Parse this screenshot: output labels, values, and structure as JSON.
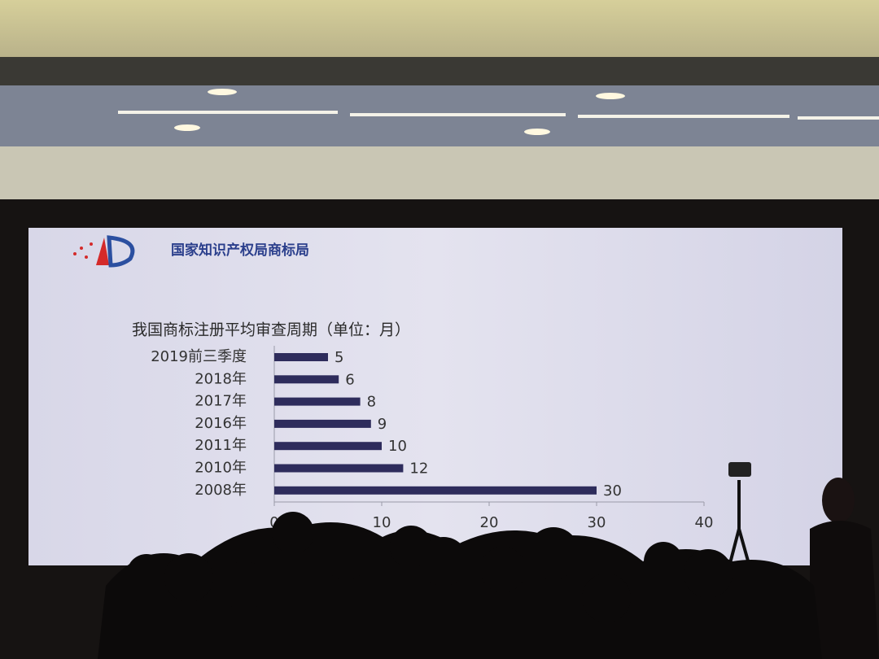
{
  "header": {
    "title": "国家知识产权局商标局"
  },
  "chart_data": {
    "type": "bar",
    "orientation": "horizontal",
    "title": "我国商标注册平均审查周期（单位：月）",
    "categories": [
      "2019前三季度",
      "2018年",
      "2017年",
      "2016年",
      "2011年",
      "2010年",
      "2008年"
    ],
    "values": [
      5,
      6,
      8,
      9,
      10,
      12,
      30
    ],
    "color": "#2e2c5c",
    "xlim": [
      0,
      40
    ],
    "xticks": [
      0,
      10,
      20,
      30,
      40
    ]
  }
}
